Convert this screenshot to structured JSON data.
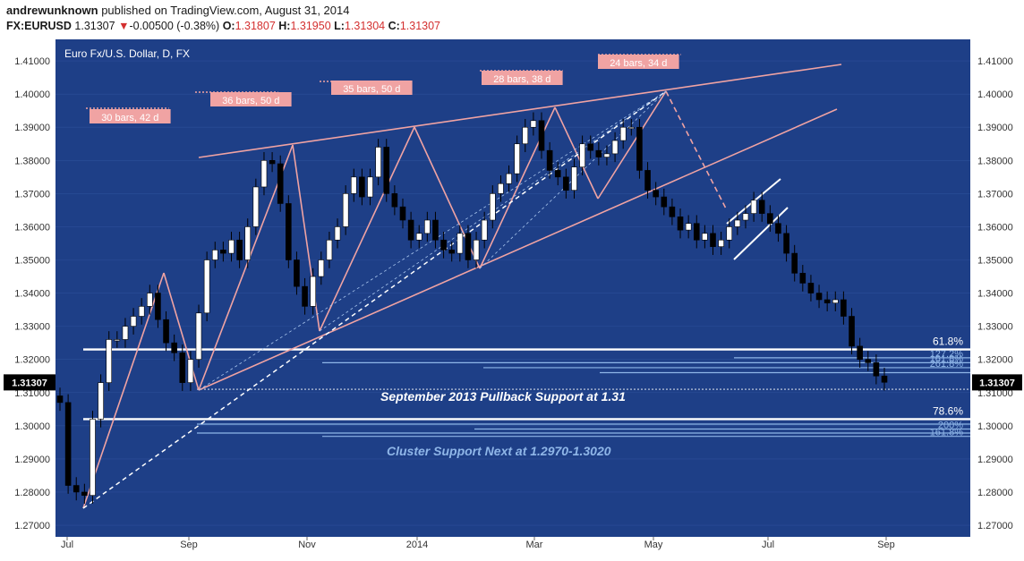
{
  "header": {
    "author": "andrewunknown",
    "published_text": "published on TradingView.com, August 31, 2014",
    "symbol": "FX:EURUSD",
    "last": "1.31307",
    "change_arrow": "▼",
    "change": "-0.00500 (-0.38%)",
    "o_label": "O:",
    "o_value": "1.31807",
    "h_label": "H:",
    "h_value": "1.31950",
    "l_label": "L:",
    "l_value": "1.31304",
    "c_label": "C:",
    "c_value": "1.31307"
  },
  "colors": {
    "background": "#1e3f87",
    "axis_bg": "#ffffff",
    "trendline": "#f0a3a3",
    "support": "#ffffff",
    "fib_line": "#8fb6e8",
    "label_box": "#f0a3a3"
  },
  "chart_data": {
    "type": "candlestick",
    "title": "Euro Fx/U.S. Dollar, D, FX",
    "last_price_label": "1.31307",
    "x_ticks": [
      "Jul",
      "Sep",
      "Nov",
      "2014",
      "Mar",
      "May",
      "Jul",
      "Sep"
    ],
    "y_ticks": [
      "1.41000",
      "1.40000",
      "1.39000",
      "1.38000",
      "1.37000",
      "1.36000",
      "1.35000",
      "1.34000",
      "1.33000",
      "1.32000",
      "1.31000",
      "1.30000",
      "1.29000",
      "1.28000",
      "1.27000"
    ],
    "ylim": [
      1.2665,
      1.4165
    ],
    "closes": [
      {
        "date": "Jul",
        "close": 1.307
      },
      {
        "date": "Jul",
        "close": 1.282
      },
      {
        "date": "Jul",
        "close": 1.28
      },
      {
        "date": "Jul",
        "close": 1.279
      },
      {
        "date": "Jul",
        "close": 1.302
      },
      {
        "date": "Jul",
        "close": 1.313
      },
      {
        "date": "Jul",
        "close": 1.326
      },
      {
        "date": "Jul",
        "close": 1.326
      },
      {
        "date": "Jul",
        "close": 1.33
      },
      {
        "date": "Aug",
        "close": 1.333
      },
      {
        "date": "Aug",
        "close": 1.336
      },
      {
        "date": "Aug",
        "close": 1.34
      },
      {
        "date": "Aug",
        "close": 1.332
      },
      {
        "date": "Aug",
        "close": 1.325
      },
      {
        "date": "Aug",
        "close": 1.322
      },
      {
        "date": "Sep",
        "close": 1.313
      },
      {
        "date": "Sep",
        "close": 1.32
      },
      {
        "date": "Sep",
        "close": 1.334
      },
      {
        "date": "Sep",
        "close": 1.35
      },
      {
        "date": "Sep",
        "close": 1.353
      },
      {
        "date": "Sep",
        "close": 1.352
      },
      {
        "date": "Sep",
        "close": 1.356
      },
      {
        "date": "Sep",
        "close": 1.35
      },
      {
        "date": "Oct",
        "close": 1.36
      },
      {
        "date": "Oct",
        "close": 1.372
      },
      {
        "date": "Oct",
        "close": 1.38
      },
      {
        "date": "Oct",
        "close": 1.379
      },
      {
        "date": "Oct",
        "close": 1.367
      },
      {
        "date": "Nov",
        "close": 1.35
      },
      {
        "date": "Nov",
        "close": 1.342
      },
      {
        "date": "Nov",
        "close": 1.336
      },
      {
        "date": "Nov",
        "close": 1.345
      },
      {
        "date": "Nov",
        "close": 1.35
      },
      {
        "date": "Nov",
        "close": 1.356
      },
      {
        "date": "Nov",
        "close": 1.36
      },
      {
        "date": "Dec",
        "close": 1.37
      },
      {
        "date": "Dec",
        "close": 1.375
      },
      {
        "date": "Dec",
        "close": 1.369
      },
      {
        "date": "Dec",
        "close": 1.375
      },
      {
        "date": "Dec",
        "close": 1.384
      },
      {
        "date": "Dec",
        "close": 1.37
      },
      {
        "date": "Dec",
        "close": 1.366
      },
      {
        "date": "2014",
        "close": 1.362
      },
      {
        "date": "Jan",
        "close": 1.356
      },
      {
        "date": "Jan",
        "close": 1.358
      },
      {
        "date": "Jan",
        "close": 1.362
      },
      {
        "date": "Jan",
        "close": 1.356
      },
      {
        "date": "Jan",
        "close": 1.353
      },
      {
        "date": "Feb",
        "close": 1.352
      },
      {
        "date": "Feb",
        "close": 1.358
      },
      {
        "date": "Feb",
        "close": 1.35
      },
      {
        "date": "Feb",
        "close": 1.356
      },
      {
        "date": "Feb",
        "close": 1.362
      },
      {
        "date": "Feb",
        "close": 1.37
      },
      {
        "date": "Feb",
        "close": 1.373
      },
      {
        "date": "Mar",
        "close": 1.376
      },
      {
        "date": "Mar",
        "close": 1.385
      },
      {
        "date": "Mar",
        "close": 1.39
      },
      {
        "date": "Mar",
        "close": 1.392
      },
      {
        "date": "Mar",
        "close": 1.383
      },
      {
        "date": "Mar",
        "close": 1.377
      },
      {
        "date": "Mar",
        "close": 1.375
      },
      {
        "date": "Apr",
        "close": 1.371
      },
      {
        "date": "Apr",
        "close": 1.378
      },
      {
        "date": "Apr",
        "close": 1.385
      },
      {
        "date": "Apr",
        "close": 1.383
      },
      {
        "date": "Apr",
        "close": 1.381
      },
      {
        "date": "Apr",
        "close": 1.382
      },
      {
        "date": "Apr",
        "close": 1.386
      },
      {
        "date": "May",
        "close": 1.39
      },
      {
        "date": "May",
        "close": 1.39
      },
      {
        "date": "May",
        "close": 1.377
      },
      {
        "date": "May",
        "close": 1.371
      },
      {
        "date": "May",
        "close": 1.369
      },
      {
        "date": "May",
        "close": 1.366
      },
      {
        "date": "May",
        "close": 1.363
      },
      {
        "date": "Jun",
        "close": 1.359
      },
      {
        "date": "Jun",
        "close": 1.361
      },
      {
        "date": "Jun",
        "close": 1.356
      },
      {
        "date": "Jun",
        "close": 1.358
      },
      {
        "date": "Jun",
        "close": 1.354
      },
      {
        "date": "Jun",
        "close": 1.356
      },
      {
        "date": "Jun",
        "close": 1.36
      },
      {
        "date": "Jun",
        "close": 1.362
      },
      {
        "date": "Jul",
        "close": 1.364
      },
      {
        "date": "Jul",
        "close": 1.368
      },
      {
        "date": "Jul",
        "close": 1.364
      },
      {
        "date": "Jul",
        "close": 1.361
      },
      {
        "date": "Jul",
        "close": 1.358
      },
      {
        "date": "Jul",
        "close": 1.352
      },
      {
        "date": "Jul",
        "close": 1.346
      },
      {
        "date": "Jul",
        "close": 1.343
      },
      {
        "date": "Aug",
        "close": 1.34
      },
      {
        "date": "Aug",
        "close": 1.338
      },
      {
        "date": "Aug",
        "close": 1.337
      },
      {
        "date": "Aug",
        "close": 1.338
      },
      {
        "date": "Aug",
        "close": 1.333
      },
      {
        "date": "Aug",
        "close": 1.324
      },
      {
        "date": "Aug",
        "close": 1.32
      },
      {
        "date": "Aug",
        "close": 1.319
      },
      {
        "date": "Aug",
        "close": 1.315
      },
      {
        "date": "Aug",
        "close": 1.3131
      }
    ],
    "horizontal_levels": [
      {
        "value": 1.323,
        "label": "61.8%",
        "kind": "support"
      },
      {
        "value": 1.3205,
        "label": "127.2%",
        "kind": "fib"
      },
      {
        "value": 1.319,
        "label": "161.8%",
        "kind": "fib"
      },
      {
        "value": 1.3175,
        "label": "261.8%",
        "kind": "fib"
      },
      {
        "value": 1.316,
        "label": "",
        "kind": "fib"
      },
      {
        "value": 1.302,
        "label": "78.6%",
        "kind": "support"
      },
      {
        "value": 1.3005,
        "label": "",
        "kind": "fib"
      },
      {
        "value": 1.299,
        "label": "200%",
        "kind": "fib"
      },
      {
        "value": 1.2978,
        "label": "",
        "kind": "fib"
      },
      {
        "value": 1.2968,
        "label": "161.8%",
        "kind": "fib"
      }
    ],
    "dotted_line_value": 1.311,
    "bar_labels": [
      "30 bars, 42 d",
      "36 bars, 50 d",
      "35 bars, 50 d",
      "28 bars, 38 d",
      "24 bars, 34 d"
    ],
    "annotations": [
      "September 2013 Pullback Support at 1.31",
      "Cluster Support Next at 1.2970-1.3020"
    ]
  }
}
